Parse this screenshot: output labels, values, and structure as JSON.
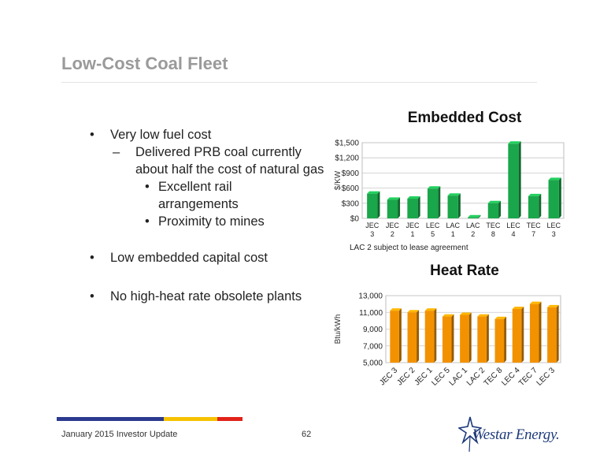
{
  "title": "Low-Cost Coal Fleet",
  "bullets": [
    {
      "level": 1,
      "marker": "•",
      "text": "Very low fuel cost"
    },
    {
      "level": 2,
      "marker": "–",
      "text": "Delivered PRB coal currently about half the cost of natural gas"
    },
    {
      "level": 3,
      "marker": "•",
      "text": "Excellent rail arrangements"
    },
    {
      "level": 3,
      "marker": "•",
      "text": "Proximity to mines"
    },
    {
      "level": 1,
      "marker": "•",
      "text": "Low embedded capital cost"
    },
    {
      "level": 1,
      "marker": "•",
      "text": "No high-heat rate obsolete plants"
    }
  ],
  "note": "LAC 2 subject to lease agreement",
  "footer": {
    "left": "January 2015 Investor Update",
    "page": "62",
    "brand": "Westar Energy."
  },
  "colors": {
    "green": "#1aa64a",
    "orange": "#f39200",
    "title_gray": "#9a9a9a",
    "stripe_blue": "#2b3a8f",
    "stripe_yellow": "#f6c200",
    "stripe_red": "#e2231a"
  },
  "chart_data": [
    {
      "type": "bar",
      "title": "Embedded Cost",
      "ylabel": "$/KW",
      "categories": [
        [
          "JEC",
          "3"
        ],
        [
          "JEC",
          "2"
        ],
        [
          "JEC",
          "1"
        ],
        [
          "LEC",
          "5"
        ],
        [
          "LAC",
          "1"
        ],
        [
          "LAC",
          "2"
        ],
        [
          "TEC",
          "8"
        ],
        [
          "LEC",
          "4"
        ],
        [
          "TEC",
          "7"
        ],
        [
          "LEC",
          "3"
        ]
      ],
      "values": [
        490,
        370,
        390,
        590,
        450,
        20,
        300,
        1480,
        440,
        760
      ],
      "ylim": [
        0,
        1500
      ],
      "yticks": [
        0,
        300,
        600,
        900,
        1200,
        1500
      ],
      "ytick_labels": [
        "$0",
        "$300",
        "$600",
        "$900",
        "$1,200",
        "$1,500"
      ],
      "color": "#1aa64a",
      "grid": true
    },
    {
      "type": "bar",
      "title": "Heat Rate",
      "ylabel": "Btu/kWh",
      "categories": [
        "JEC 3",
        "JEC 2",
        "JEC 1",
        "LEC 5",
        "LAC 1",
        "LAC 2",
        "TEC 8",
        "LEC 4",
        "TEC 7",
        "LEC 3"
      ],
      "values": [
        11200,
        11000,
        11200,
        10500,
        10700,
        10500,
        10200,
        11400,
        12000,
        11600
      ],
      "ylim": [
        5000,
        13000
      ],
      "yticks": [
        5000,
        7000,
        9000,
        11000,
        13000
      ],
      "ytick_labels": [
        "5,000",
        "7,000",
        "9,000",
        "11,000",
        "13,000"
      ],
      "color": "#f39200",
      "grid": true
    }
  ]
}
